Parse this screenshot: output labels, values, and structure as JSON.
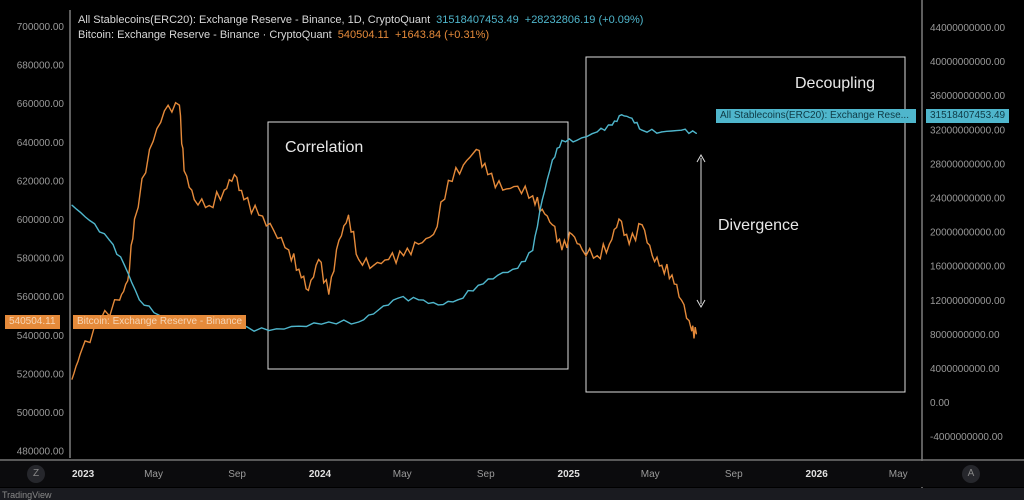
{
  "legend": {
    "series1_title": "All Stablecoins(ERC20): Exchange Reserve - Binance, 1D, CryptoQuant",
    "series1_value": "31518407453.49",
    "series1_change": "+28232806.19 (+0.09%)",
    "series2_title": "Bitcoin: Exchange Reserve - Binance · CryptoQuant",
    "series2_value": "540504.11",
    "series2_change": "+1643.84 (+0.31%)"
  },
  "tags": {
    "btc_value": "540504.11",
    "btc_label": "Bitcoin: Exchange Reserve - Binance",
    "sc_label": "All Stablecoins(ERC20): Exchange Rese...",
    "sc_value": "31518407453.49"
  },
  "annotations": {
    "correlation": "Correlation",
    "decoupling": "Decoupling",
    "divergence": "Divergence"
  },
  "buttons": {
    "left": "Z",
    "right": "A"
  },
  "footer": "TradingView",
  "colors": {
    "bitcoin": "#e58a3a",
    "stablecoins": "#4fb6cc",
    "background": "#000000"
  },
  "chart_data": {
    "type": "line",
    "x_ticks": [
      "2023",
      "May",
      "Sep",
      "2024",
      "May",
      "Sep",
      "2025",
      "May",
      "Sep",
      "2026",
      "May"
    ],
    "x_tick_dates": [
      "2023-01-01",
      "2023-05-01",
      "2023-09-01",
      "2024-01-01",
      "2024-05-01",
      "2024-09-01",
      "2025-01-01",
      "2025-05-01",
      "2025-09-01",
      "2026-01-01",
      "2026-05-01"
    ],
    "xlim": [
      "2023-01-01",
      "2026-06-01"
    ],
    "left_axis": {
      "ylim": [
        480000,
        700000
      ],
      "ticks": [
        "700000.00",
        "680000.00",
        "660000.00",
        "640000.00",
        "620000.00",
        "600000.00",
        "580000.00",
        "560000.00",
        "540000.00",
        "520000.00",
        "500000.00",
        "480000.00"
      ]
    },
    "right_axis": {
      "ylim": [
        -4000000000,
        44000000000
      ],
      "ticks": [
        "44000000000.00",
        "40000000000.00",
        "36000000000.00",
        "32000000000.00",
        "28000000000.00",
        "24000000000.00",
        "20000000000.00",
        "16000000000.00",
        "12000000000.00",
        "8000000000.00",
        "4000000000.00",
        "0.00",
        "-4000000000.00"
      ]
    },
    "grid": false,
    "series": [
      {
        "name": "Bitcoin: Exchange Reserve - Binance",
        "axis": "left",
        "color": "#e58a3a",
        "x": [
          "2023-01-01",
          "2023-01-13",
          "2023-02-11",
          "2023-03-12",
          "2023-03-24",
          "2023-04-03",
          "2023-04-25",
          "2023-05-17",
          "2023-06-08",
          "2023-06-15",
          "2023-06-30",
          "2023-07-22",
          "2023-08-13",
          "2023-08-28",
          "2023-09-11",
          "2023-10-03",
          "2023-10-25",
          "2023-11-16",
          "2023-12-01",
          "2023-12-15",
          "2023-12-30",
          "2024-01-14",
          "2024-01-29",
          "2024-02-12",
          "2024-02-27",
          "2024-03-20",
          "2024-04-11",
          "2024-05-03",
          "2024-05-25",
          "2024-06-16",
          "2024-07-08",
          "2024-07-30",
          "2024-08-18",
          "2024-09-04",
          "2024-09-26",
          "2024-10-18",
          "2024-11-09",
          "2024-11-23",
          "2024-12-08",
          "2024-12-22",
          "2025-01-06",
          "2025-01-21",
          "2025-02-12",
          "2025-03-02",
          "2025-03-16",
          "2025-03-31",
          "2025-04-19",
          "2025-05-04",
          "2025-05-18",
          "2025-06-02",
          "2025-06-16",
          "2025-07-01",
          "2025-07-08"
        ],
        "values": [
          517000,
          530000,
          547000,
          558000,
          568000,
          600000,
          636000,
          656000,
          659000,
          625000,
          610000,
          607000,
          615000,
          623000,
          610000,
          602000,
          594000,
          584000,
          574000,
          563000,
          579000,
          561000,
          589000,
          602000,
          579000,
          576000,
          579000,
          581000,
          587000,
          592000,
          620000,
          628000,
          636000,
          623000,
          615000,
          617000,
          612000,
          605000,
          597000,
          584000,
          592000,
          584000,
          581000,
          587000,
          600000,
          587000,
          597000,
          581000,
          576000,
          571000,
          558000,
          542000,
          540504
        ]
      },
      {
        "name": "All Stablecoins(ERC20): Exchange Reserve - Binance",
        "axis": "right",
        "color": "#4fb6cc",
        "x": [
          "2023-01-01",
          "2023-01-27",
          "2023-02-25",
          "2023-03-19",
          "2023-04-10",
          "2023-05-09",
          "2023-06-15",
          "2023-07-22",
          "2023-09-04",
          "2023-10-18",
          "2023-12-01",
          "2024-01-14",
          "2024-02-27",
          "2024-03-27",
          "2024-04-25",
          "2024-05-25",
          "2024-06-23",
          "2024-07-22",
          "2024-08-21",
          "2024-09-19",
          "2024-10-18",
          "2024-11-09",
          "2024-11-23",
          "2024-12-08",
          "2024-12-22",
          "2025-01-13",
          "2025-02-12",
          "2025-03-06",
          "2025-03-20",
          "2025-04-04",
          "2025-04-19",
          "2025-05-18",
          "2025-06-16",
          "2025-07-08"
        ],
        "values": [
          23100000000,
          21300000000,
          19000000000,
          16100000000,
          12000000000,
          10200000000,
          8700000000,
          9400000000,
          8700000000,
          8400000000,
          8900000000,
          9400000000,
          9400000000,
          10800000000,
          12200000000,
          12000000000,
          11400000000,
          12000000000,
          13700000000,
          14900000000,
          15700000000,
          17800000000,
          23700000000,
          28400000000,
          30700000000,
          30700000000,
          31700000000,
          32500000000,
          33700000000,
          33300000000,
          31900000000,
          31700000000,
          31900000000,
          31518407453
        ]
      }
    ]
  }
}
